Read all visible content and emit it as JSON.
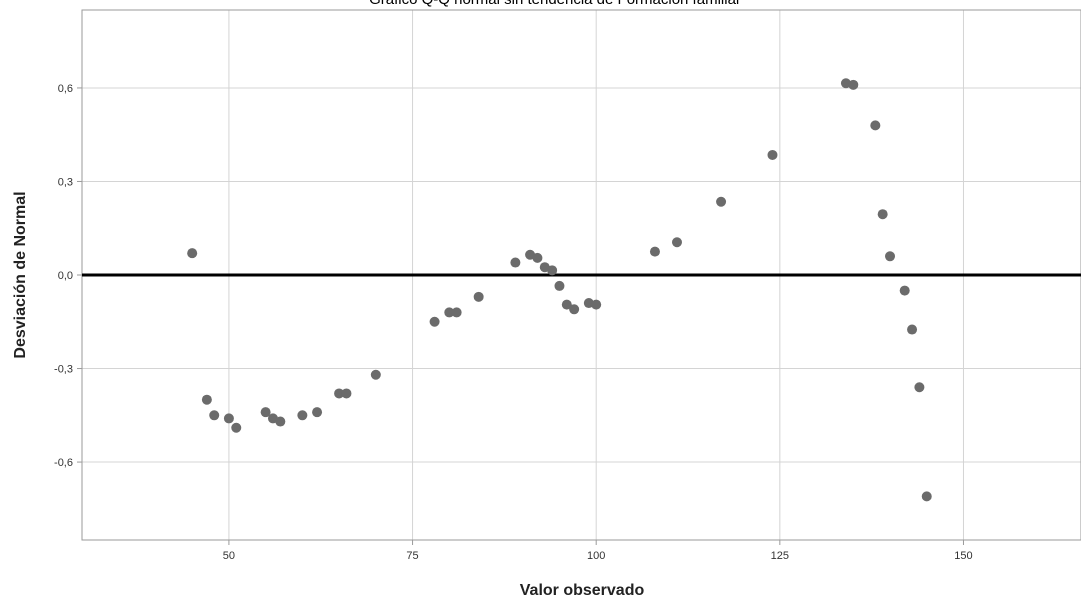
{
  "chart_data": {
    "type": "scatter",
    "title": "Gráfico Q-Q normal sin tendencia de Formación familiar",
    "xlabel": "Valor observado",
    "ylabel": "Desviación de Normal",
    "xlim": [
      30,
      166
    ],
    "ylim": [
      -0.85,
      0.85
    ],
    "xticks": [
      50,
      75,
      100,
      125,
      150
    ],
    "xtick_labels": [
      "50",
      "75",
      "100",
      "125",
      "150"
    ],
    "yticks": [
      -0.6,
      -0.3,
      0.0,
      0.3,
      0.6
    ],
    "ytick_labels": [
      "-0,6",
      "-0,3",
      "0,0",
      "0,3",
      "0,6"
    ],
    "grid": true,
    "reference_line_y": 0,
    "colors": {
      "points": "#6b6b6b",
      "reference": "#000000",
      "grid": "#d4d4d4",
      "frame": "#9a9a9a"
    },
    "points": [
      {
        "x": 45,
        "y": 0.07
      },
      {
        "x": 47,
        "y": -0.4
      },
      {
        "x": 48,
        "y": -0.45
      },
      {
        "x": 50,
        "y": -0.46
      },
      {
        "x": 51,
        "y": -0.49
      },
      {
        "x": 55,
        "y": -0.44
      },
      {
        "x": 56,
        "y": -0.46
      },
      {
        "x": 57,
        "y": -0.47
      },
      {
        "x": 60,
        "y": -0.45
      },
      {
        "x": 62,
        "y": -0.44
      },
      {
        "x": 65,
        "y": -0.38
      },
      {
        "x": 66,
        "y": -0.38
      },
      {
        "x": 70,
        "y": -0.32
      },
      {
        "x": 78,
        "y": -0.15
      },
      {
        "x": 80,
        "y": -0.12
      },
      {
        "x": 81,
        "y": -0.12
      },
      {
        "x": 84,
        "y": -0.07
      },
      {
        "x": 89,
        "y": 0.04
      },
      {
        "x": 91,
        "y": 0.065
      },
      {
        "x": 92,
        "y": 0.055
      },
      {
        "x": 93,
        "y": 0.025
      },
      {
        "x": 94,
        "y": 0.015
      },
      {
        "x": 95,
        "y": -0.035
      },
      {
        "x": 96,
        "y": -0.095
      },
      {
        "x": 97,
        "y": -0.11
      },
      {
        "x": 99,
        "y": -0.09
      },
      {
        "x": 100,
        "y": -0.095
      },
      {
        "x": 108,
        "y": 0.075
      },
      {
        "x": 111,
        "y": 0.105
      },
      {
        "x": 117,
        "y": 0.235
      },
      {
        "x": 124,
        "y": 0.385
      },
      {
        "x": 134,
        "y": 0.615
      },
      {
        "x": 135,
        "y": 0.61
      },
      {
        "x": 138,
        "y": 0.48
      },
      {
        "x": 139,
        "y": 0.195
      },
      {
        "x": 140,
        "y": 0.06
      },
      {
        "x": 142,
        "y": -0.05
      },
      {
        "x": 143,
        "y": -0.175
      },
      {
        "x": 144,
        "y": -0.36
      },
      {
        "x": 145,
        "y": -0.71
      }
    ]
  }
}
